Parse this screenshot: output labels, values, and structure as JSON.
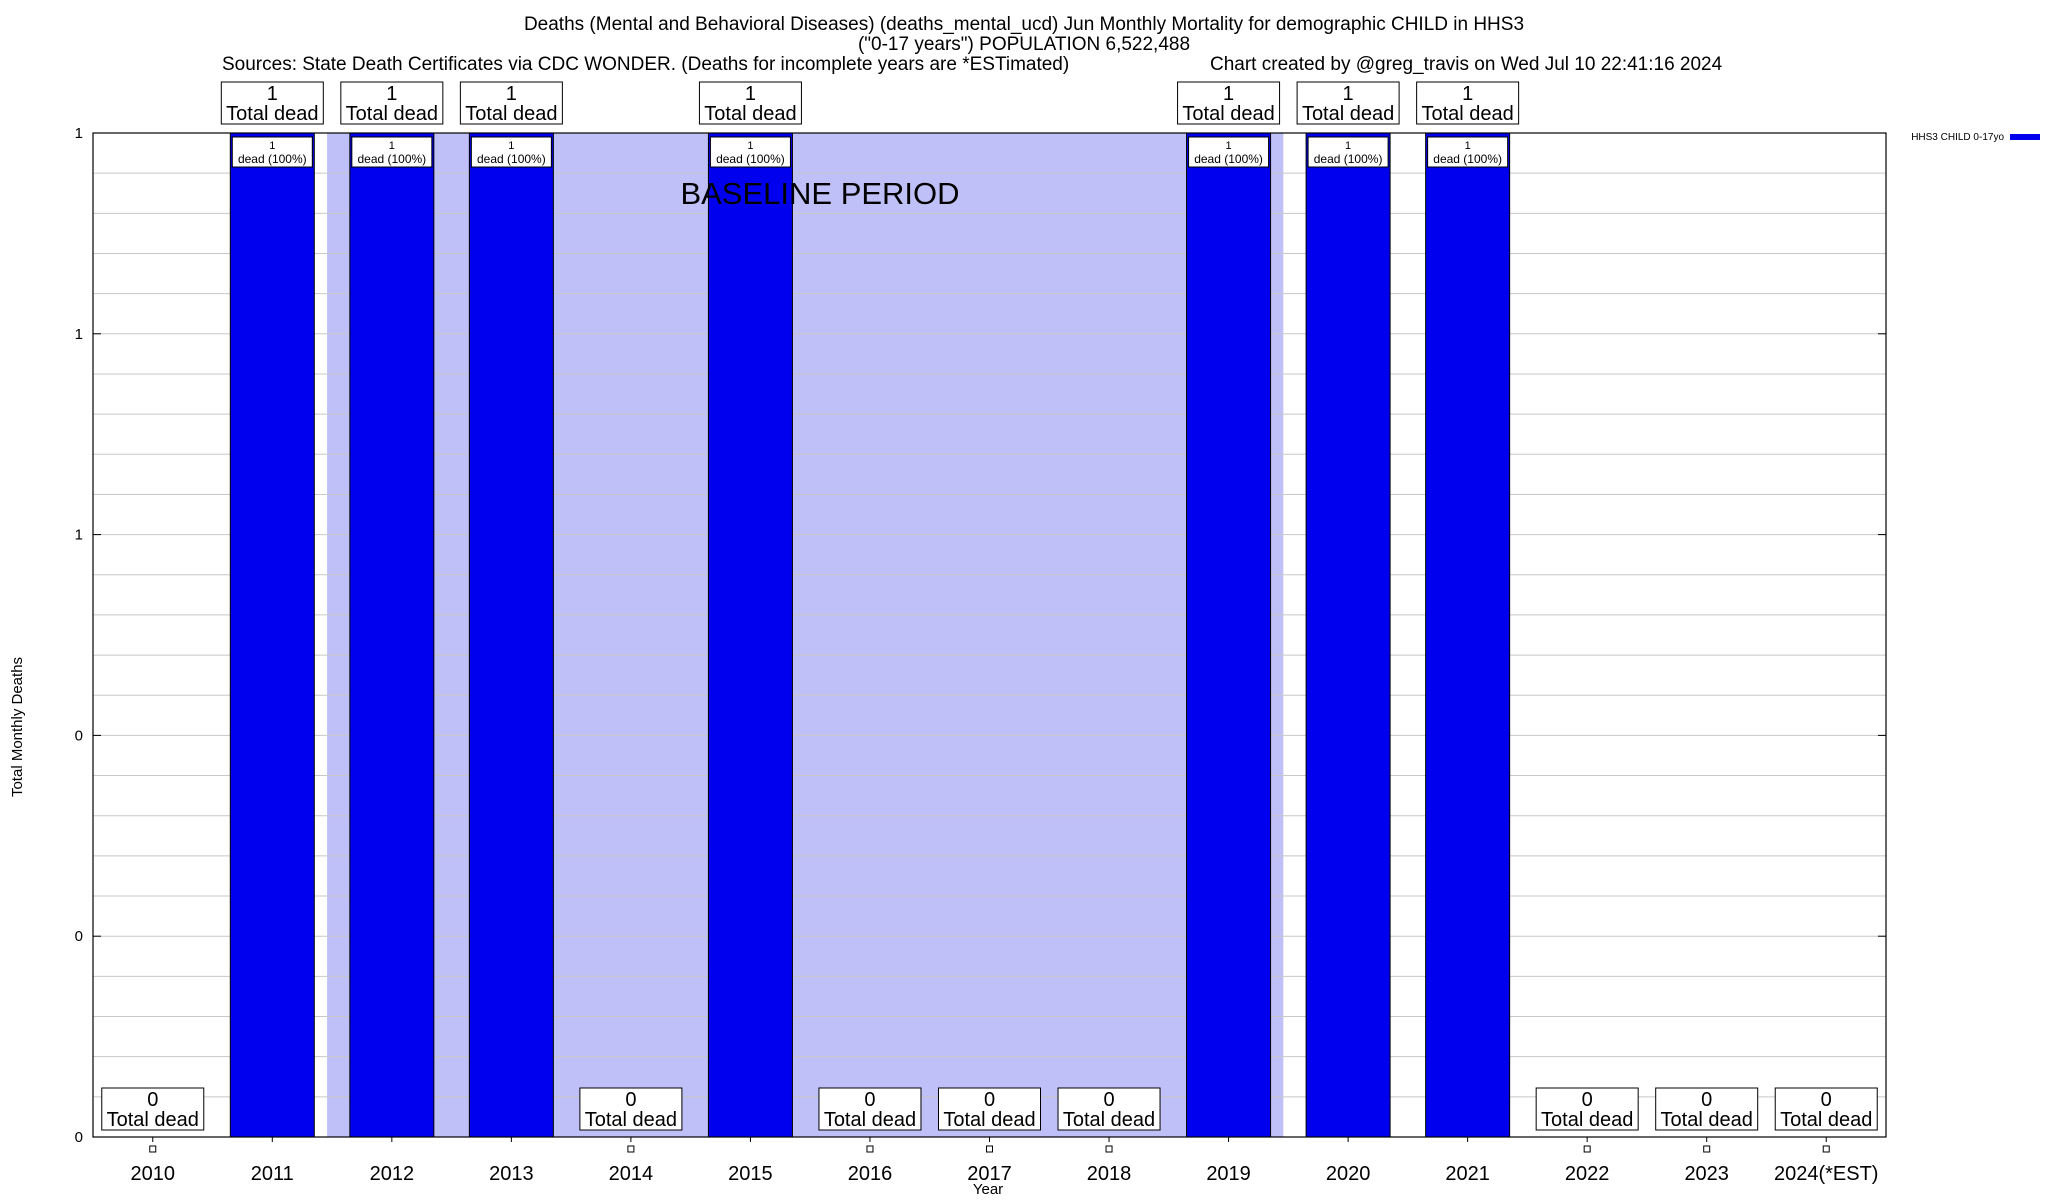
{
  "chart_data": {
    "type": "bar",
    "title_lines": [
      "Deaths (Mental and Behavioral Diseases) (deaths_mental_ucd) Jun Monthly Mortality for demographic CHILD in HHS3",
      "(\"0-17 years\") POPULATION 6,522,488"
    ],
    "subtitle_left": "Sources: State Death Certificates via CDC WONDER. (Deaths for incomplete years are *ESTimated)",
    "subtitle_right": "Chart created by @greg_travis on Wed Jul 10 22:41:16 2024",
    "xlabel": "Year",
    "ylabel": "Total Monthly Deaths",
    "ylim": [
      0,
      1
    ],
    "ytick_labels": [
      "0",
      "0",
      "0",
      "1",
      "1",
      "1"
    ],
    "grid": true,
    "legend_position": "top-right",
    "legend": [
      {
        "name": "HHS3 CHILD 0-17yo",
        "color": "#0000ee"
      }
    ],
    "baseline_label": "BASELINE PERIOD",
    "baseline_range": [
      "2012",
      "2019"
    ],
    "categories": [
      "2010",
      "2011",
      "2012",
      "2013",
      "2014",
      "2015",
      "2016",
      "2017",
      "2018",
      "2019",
      "2020",
      "2021",
      "2022",
      "2023",
      "2024(*EST)"
    ],
    "values": [
      0,
      1,
      1,
      1,
      0,
      1,
      0,
      0,
      0,
      1,
      1,
      1,
      0,
      0,
      0
    ],
    "total_labels": [
      "0",
      "1",
      "1",
      "1",
      "0",
      "1",
      "0",
      "0",
      "0",
      "1",
      "1",
      "1",
      "0",
      "0",
      "0"
    ],
    "total_label_text": "Total dead",
    "bar_labels": [
      "",
      "1",
      "1",
      "1",
      "",
      "1",
      "",
      "",
      "",
      "1",
      "1",
      "1",
      "",
      "",
      ""
    ],
    "bar_label_text": "dead (100%)",
    "colors": {
      "bar": "#0000ee",
      "baseline": "#c0c0f8",
      "grid": "#c8c8c8",
      "axis": "#000000"
    }
  }
}
